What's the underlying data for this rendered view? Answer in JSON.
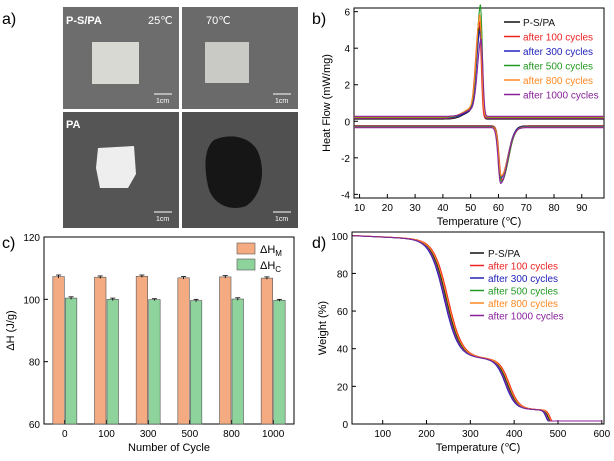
{
  "panels": {
    "a": {
      "label": "a)",
      "photos": [
        {
          "sample": "P-S/PA",
          "temp": "25℃",
          "scale": "1cm",
          "state": "solid-white"
        },
        {
          "sample": "",
          "temp": "70℃",
          "scale": "1cm",
          "state": "solid-grey"
        },
        {
          "sample": "PA",
          "temp": "",
          "scale": "1cm",
          "state": "solid-white-bright"
        },
        {
          "sample": "",
          "temp": "",
          "scale": "1cm",
          "state": "melted-dark"
        }
      ]
    },
    "b": {
      "label": "b)"
    },
    "c": {
      "label": "c)"
    },
    "d": {
      "label": "d)"
    }
  },
  "colors": {
    "P-S/PA": "#111111",
    "after 100 cycles": "#ee2222",
    "after 300 cycles": "#2222bb",
    "after 500 cycles": "#229922",
    "after 800 cycles": "#ff8822",
    "after 1000 cycles": "#882299",
    "bar_m": "#f5ab82",
    "bar_c": "#8ed39b"
  },
  "chart_data": [
    {
      "id": "b",
      "type": "line",
      "xlabel": "Temperature (℃)",
      "ylabel": "Heat Flow (mW/mg)",
      "xlim": [
        8,
        98
      ],
      "ylim": [
        -4.2,
        6.2
      ],
      "xticks": [
        10,
        20,
        30,
        40,
        50,
        60,
        70,
        80,
        90
      ],
      "yticks": [
        -4,
        -2,
        0,
        2,
        4,
        6
      ],
      "legend_position": "top-right",
      "series": [
        {
          "name": "P-S/PA",
          "melt_peak_T": 53.4,
          "melt_peak": 5.0,
          "cryst_peak_T": 61.0,
          "cryst_peak": -3.0
        },
        {
          "name": "after 100 cycles",
          "melt_peak_T": 53.2,
          "melt_peak": 5.3,
          "cryst_peak_T": 61.2,
          "cryst_peak": -3.2
        },
        {
          "name": "after 300 cycles",
          "melt_peak_T": 53.5,
          "melt_peak": 4.8,
          "cryst_peak_T": 60.9,
          "cryst_peak": -3.1
        },
        {
          "name": "after 500 cycles",
          "melt_peak_T": 53.6,
          "melt_peak": 6.1,
          "cryst_peak_T": 61.1,
          "cryst_peak": -3.3
        },
        {
          "name": "after 800 cycles",
          "melt_peak_T": 53.4,
          "melt_peak": 5.6,
          "cryst_peak_T": 61.0,
          "cryst_peak": -3.0
        },
        {
          "name": "after 1000 cycles",
          "melt_peak_T": 53.8,
          "melt_peak": 4.3,
          "cryst_peak_T": 60.8,
          "cryst_peak": -3.4
        }
      ]
    },
    {
      "id": "c",
      "type": "bar",
      "xlabel": "Number of Cycle",
      "ylabel": "ΔH (J/g)",
      "ylim": [
        60,
        120
      ],
      "yticks": [
        60,
        80,
        100,
        120
      ],
      "categories": [
        "0",
        "100",
        "300",
        "500",
        "800",
        "1000"
      ],
      "legend_position": "top-right",
      "series": [
        {
          "name": "ΔHM",
          "name_base": "ΔH",
          "name_sub": "M",
          "values": [
            107.3,
            107.1,
            107.4,
            106.9,
            107.2,
            106.8
          ],
          "errors": [
            0.5,
            0.4,
            0.4,
            0.4,
            0.4,
            0.4
          ]
        },
        {
          "name": "ΔHC",
          "name_base": "ΔH",
          "name_sub": "C",
          "values": [
            100.4,
            100.0,
            99.9,
            99.6,
            100.1,
            99.7
          ],
          "errors": [
            0.4,
            0.4,
            0.3,
            0.4,
            0.4,
            0.3
          ]
        }
      ]
    },
    {
      "id": "d",
      "type": "line",
      "xlabel": "Temperature (℃)",
      "ylabel": "Weight (%)",
      "xlim": [
        30,
        605
      ],
      "ylim": [
        0,
        102
      ],
      "xticks": [
        100,
        200,
        300,
        400,
        500,
        600
      ],
      "yticks": [
        0,
        20,
        40,
        60,
        80,
        100
      ],
      "legend_position": "top-right",
      "series": [
        {
          "name": "P-S/PA",
          "shift": 0
        },
        {
          "name": "after 100 cycles",
          "shift": 4
        },
        {
          "name": "after 300 cycles",
          "shift": -5
        },
        {
          "name": "after 500 cycles",
          "shift": -2
        },
        {
          "name": "after 800 cycles",
          "shift": 2
        },
        {
          "name": "after 1000 cycles",
          "shift": -3
        }
      ]
    }
  ]
}
